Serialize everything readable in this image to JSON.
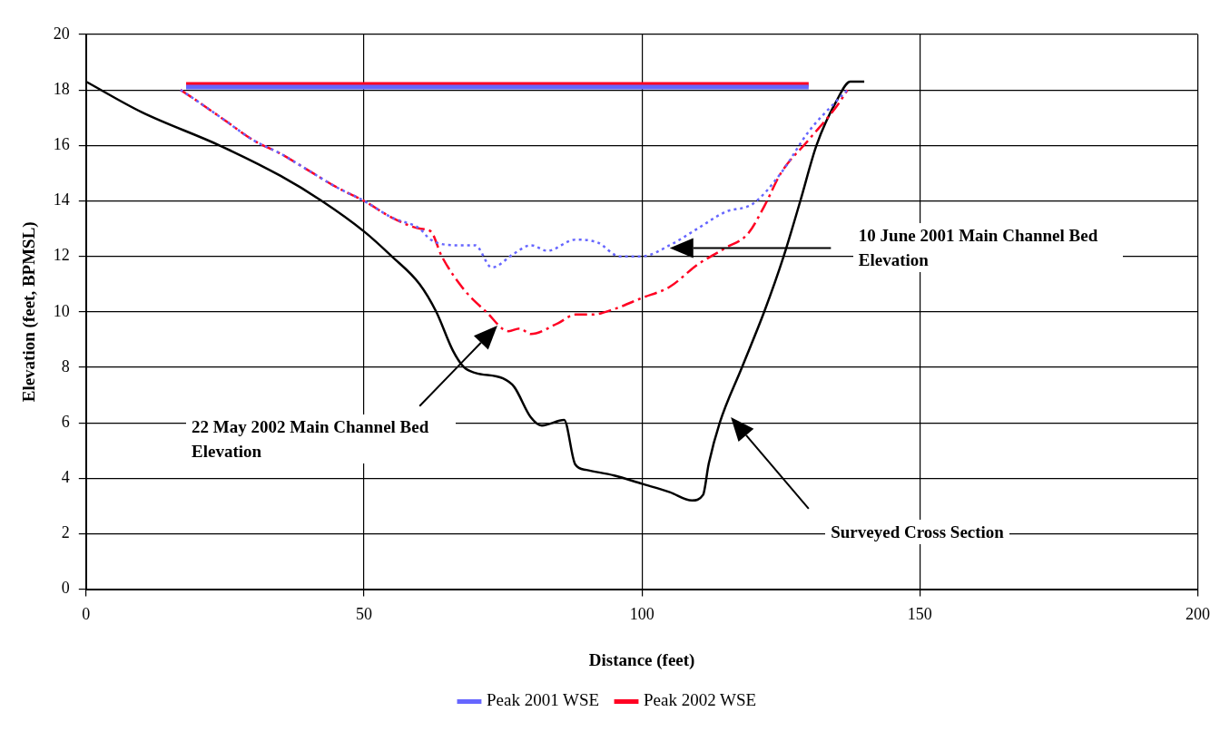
{
  "chart_data": {
    "type": "line",
    "xlabel": "Distance (feet)",
    "ylabel": "Elevation (feet, BPMSL)",
    "xlim": [
      0,
      200
    ],
    "xticks": [
      0,
      50,
      100,
      150,
      200
    ],
    "ylim": [
      0,
      20
    ],
    "yticks": [
      0,
      2,
      4,
      6,
      8,
      10,
      12,
      14,
      16,
      18,
      20
    ],
    "grid": true,
    "legend": "bottom",
    "marker": "none",
    "series": [
      {
        "name": "Peak 2001 WSE",
        "color": "#6666ff",
        "line_style": "solid",
        "x": [
          18,
          130
        ],
        "values": [
          18.1,
          18.1
        ]
      },
      {
        "name": "Peak 2002 WSE",
        "color": "#ff0022",
        "line_style": "solid",
        "x": [
          18,
          130
        ],
        "values": [
          18.2,
          18.2
        ]
      },
      {
        "color": "#6666ff",
        "line_style": "dotted",
        "x": [
          17,
          20,
          25,
          30,
          35,
          40,
          45,
          50,
          55,
          60,
          62,
          67,
          70,
          73,
          77,
          80,
          83,
          88,
          92,
          96,
          100,
          105,
          110,
          115,
          120,
          125,
          130,
          135,
          137
        ],
        "values": [
          18,
          17.6,
          16.9,
          16.2,
          15.7,
          15.1,
          14.5,
          14,
          13.4,
          13,
          12.6,
          12.4,
          12.4,
          11.6,
          12.1,
          12.4,
          12.2,
          12.6,
          12.5,
          12,
          12,
          12.4,
          13,
          13.6,
          13.9,
          15,
          16.5,
          17.6,
          18
        ]
      },
      {
        "color": "#ff0022",
        "line_style": "dashed",
        "x": [
          17,
          20,
          25,
          30,
          35,
          40,
          45,
          50,
          55,
          60,
          62,
          64,
          68,
          72,
          76,
          78,
          80,
          85,
          88,
          91,
          95,
          100,
          105,
          110,
          115,
          119,
          122,
          125,
          130,
          135,
          137
        ],
        "values": [
          18,
          17.6,
          16.9,
          16.2,
          15.7,
          15.1,
          14.5,
          14,
          13.4,
          13,
          12.9,
          12,
          10.8,
          10,
          9.3,
          9.4,
          9.2,
          9.6,
          9.9,
          9.9,
          10.1,
          10.5,
          10.9,
          11.7,
          12.3,
          12.8,
          13.8,
          15,
          16.2,
          17.4,
          18
        ]
      },
      {
        "color": "#000000",
        "line_style": "solid",
        "x": [
          0,
          10,
          24,
          35,
          42.4,
          50,
          55,
          60,
          63,
          66,
          68,
          70,
          75,
          77,
          80,
          82,
          86,
          88,
          90,
          95,
          100,
          105,
          109,
          111,
          112,
          114,
          118,
          122,
          125.5,
          128.5,
          131.4,
          135,
          137.5,
          140
        ],
        "values": [
          18.3,
          17.2,
          16,
          14.9,
          14,
          12.9,
          12,
          11,
          10,
          8.6,
          8,
          7.8,
          7.6,
          7.3,
          6.2,
          5.9,
          6.1,
          4.5,
          4.3,
          4.1,
          3.8,
          3.5,
          3.2,
          3.4,
          4.5,
          6,
          8,
          10,
          12,
          14,
          16,
          17.6,
          18.3,
          18.3
        ]
      }
    ],
    "annotations": [
      "10 June 2001 Main Channel Bed Elevation",
      "22 May 2002 Main Channel Bed Elevation",
      "Surveyed Cross Section"
    ]
  }
}
